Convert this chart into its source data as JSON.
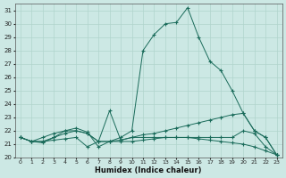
{
  "xlabel": "Humidex (Indice chaleur)",
  "xlim": [
    -0.5,
    23.5
  ],
  "ylim": [
    20,
    31.5
  ],
  "yticks": [
    20,
    21,
    22,
    23,
    24,
    25,
    26,
    27,
    28,
    29,
    30,
    31
  ],
  "xticks": [
    0,
    1,
    2,
    3,
    4,
    5,
    6,
    7,
    8,
    9,
    10,
    11,
    12,
    13,
    14,
    15,
    16,
    17,
    18,
    19,
    20,
    21,
    22,
    23
  ],
  "bg_color": "#cce8e4",
  "grid_color": "#b0d4cc",
  "line_color": "#1a6b5a",
  "series": [
    {
      "x": [
        0,
        1,
        2,
        3,
        4,
        5,
        6,
        7,
        8,
        9,
        10,
        11,
        12,
        13,
        14,
        15,
        16,
        17,
        18,
        19,
        20,
        21,
        22,
        23
      ],
      "y": [
        21.5,
        21.2,
        21.1,
        21.5,
        21.8,
        22.0,
        21.8,
        21.2,
        21.2,
        21.5,
        22.0,
        28.0,
        29.2,
        30.0,
        30.1,
        31.2,
        29.0,
        27.2,
        26.5,
        25.0,
        23.3,
        22.0,
        21.5,
        20.2
      ]
    },
    {
      "x": [
        0,
        1,
        2,
        3,
        4,
        5,
        6,
        7,
        8,
        9,
        10,
        11,
        12,
        13,
        14,
        15,
        16,
        17,
        18,
        19,
        20,
        21,
        22,
        23
      ],
      "y": [
        21.5,
        21.2,
        21.5,
        21.8,
        22.0,
        22.0,
        21.8,
        21.2,
        23.5,
        21.3,
        21.5,
        21.5,
        21.5,
        21.5,
        21.5,
        21.5,
        21.5,
        21.5,
        21.5,
        21.5,
        22.0,
        21.8,
        20.8,
        20.2
      ]
    },
    {
      "x": [
        0,
        1,
        2,
        3,
        4,
        5,
        6,
        7,
        8,
        9,
        10,
        11,
        12,
        13,
        14,
        15,
        16,
        17,
        18,
        19,
        20,
        21,
        22,
        23
      ],
      "y": [
        21.5,
        21.2,
        21.2,
        21.5,
        22.0,
        22.2,
        21.9,
        20.8,
        21.2,
        21.3,
        21.5,
        21.7,
        21.8,
        22.0,
        22.2,
        22.4,
        22.6,
        22.8,
        23.0,
        23.2,
        23.3,
        22.0,
        21.5,
        20.2
      ]
    },
    {
      "x": [
        0,
        1,
        2,
        3,
        4,
        5,
        6,
        7,
        8,
        9,
        10,
        11,
        12,
        13,
        14,
        15,
        16,
        17,
        18,
        19,
        20,
        21,
        22,
        23
      ],
      "y": [
        21.5,
        21.2,
        21.2,
        21.3,
        21.4,
        21.5,
        20.8,
        21.2,
        21.2,
        21.2,
        21.2,
        21.3,
        21.4,
        21.5,
        21.5,
        21.5,
        21.4,
        21.3,
        21.2,
        21.1,
        21.0,
        20.8,
        20.5,
        20.2
      ]
    }
  ]
}
